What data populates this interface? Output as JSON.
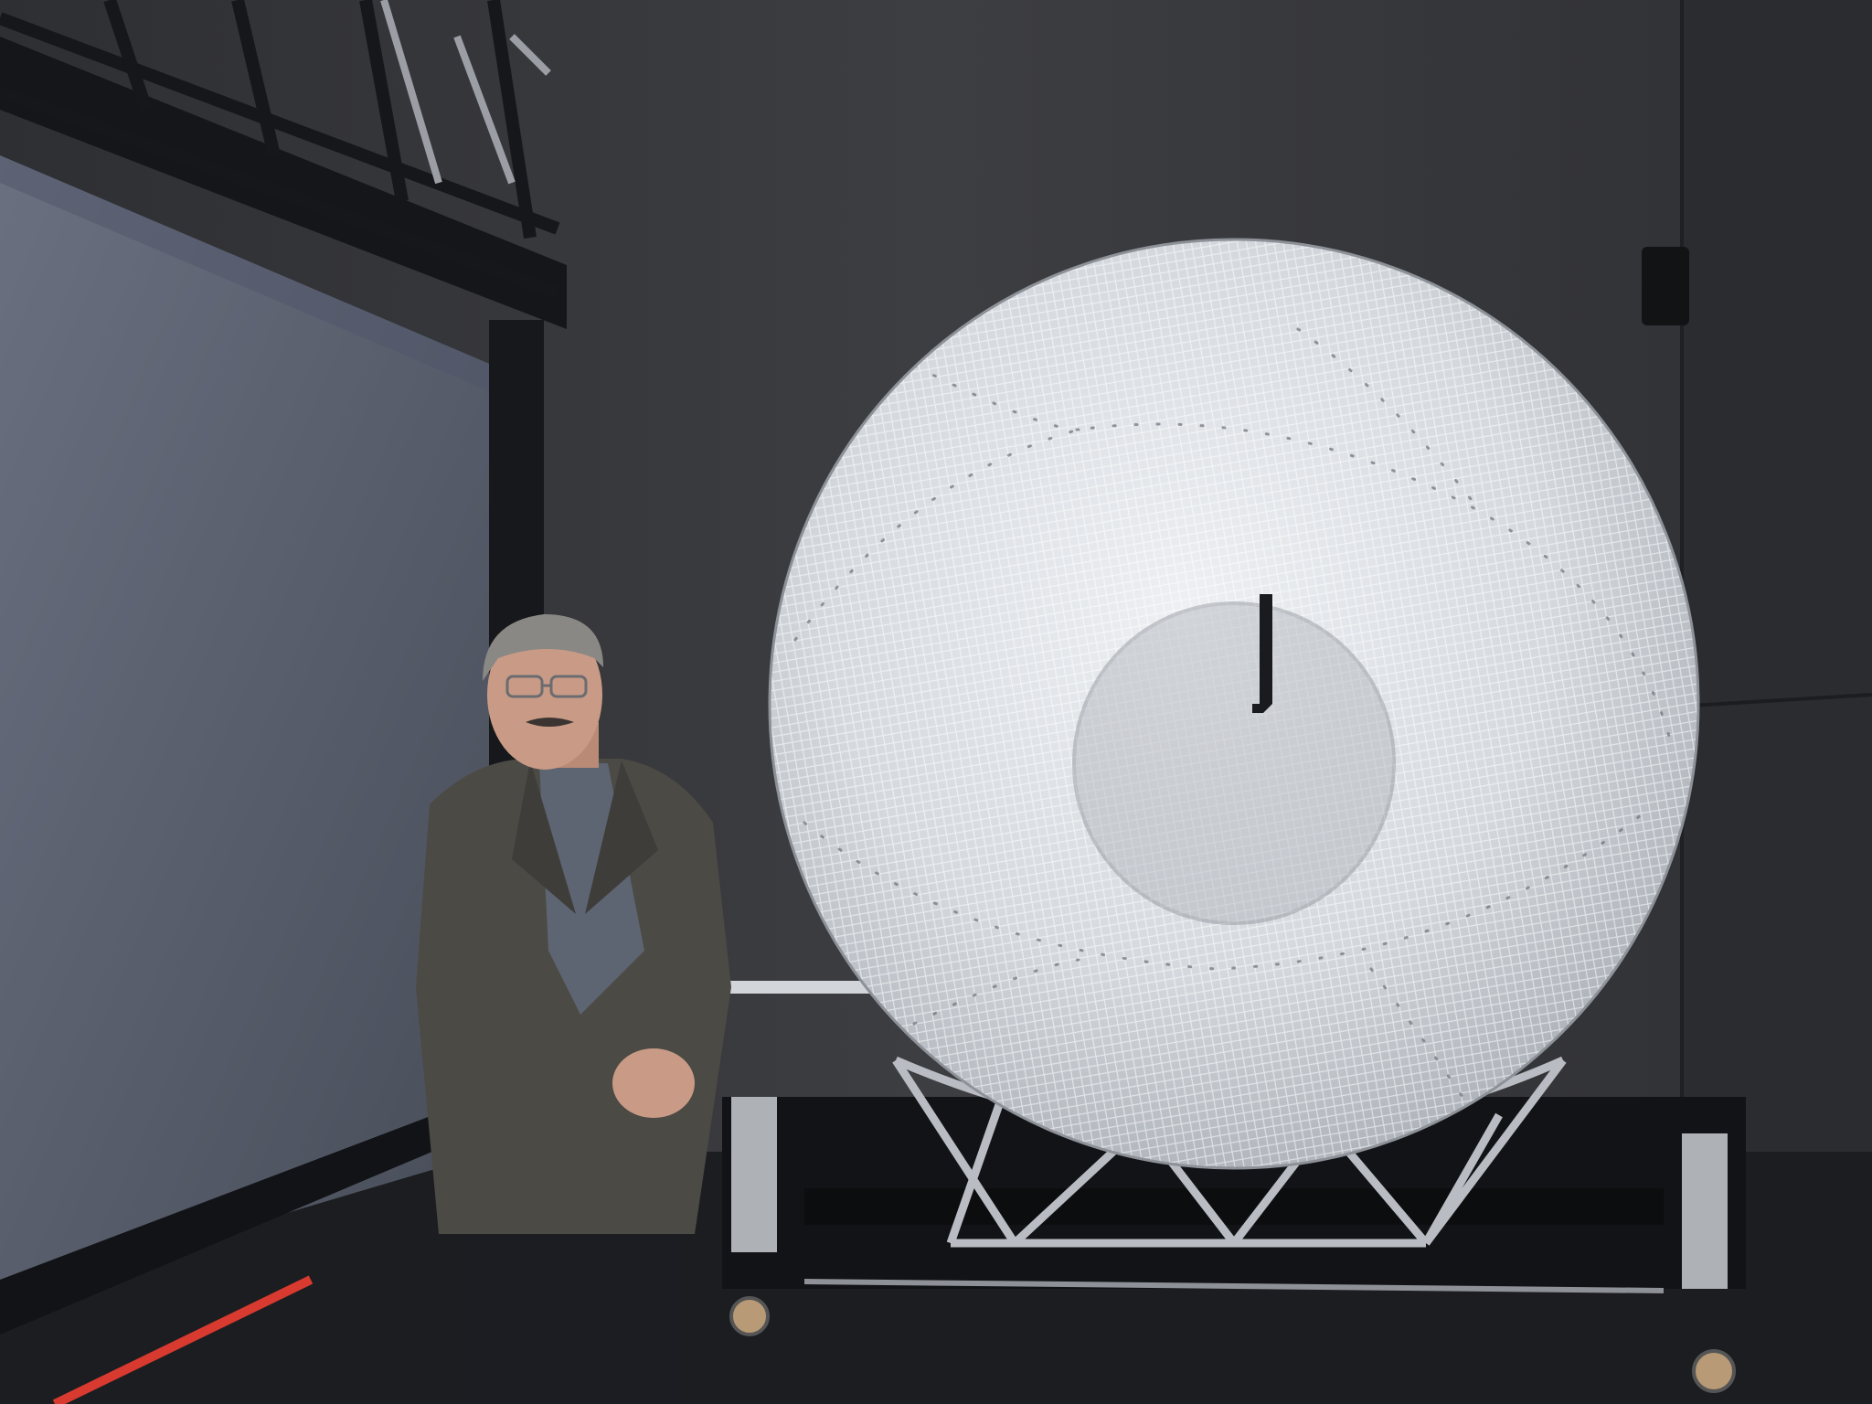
{
  "scene": {
    "kind": "photograph",
    "subjects": [
      "man-in-blazer",
      "transparent-mesh-sphere",
      "metal-truss-cradle",
      "rolling-platform"
    ],
    "colors": {
      "wall": "#3a3b3f",
      "wall_dark": "#26272a",
      "screen": "#5a6070",
      "floor": "#1d1e21",
      "sphere_fill": "#d7dbe0",
      "sphere_line": "#ffffff",
      "truss": "#b9bcc2",
      "blazer": "#4b4a45",
      "shirt": "#5d6472",
      "skin": "#c99b86",
      "red_line": "#d83a30"
    }
  }
}
